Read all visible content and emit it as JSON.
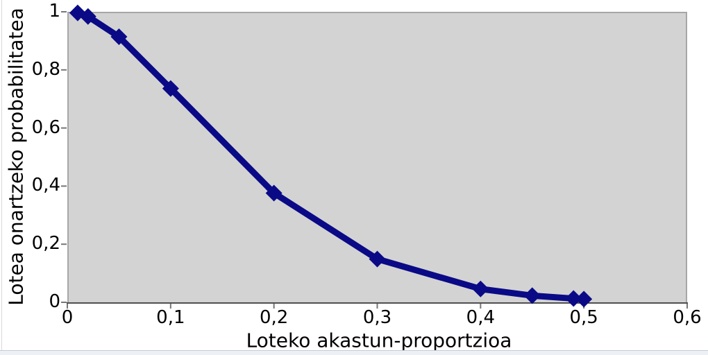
{
  "chart_data": {
    "type": "line",
    "title": "",
    "xlabel": "Loteko akastun-proportzioa",
    "ylabel": "Lotea onartzeko probabilitatea",
    "x": [
      0.01,
      0.02,
      0.05,
      0.1,
      0.2,
      0.3,
      0.4,
      0.45,
      0.49,
      0.5
    ],
    "y": [
      0.996,
      0.984,
      0.914,
      0.736,
      0.376,
      0.149,
      0.046,
      0.023,
      0.013,
      0.011
    ],
    "xlim": [
      0,
      0.6
    ],
    "ylim": [
      0,
      1
    ],
    "x_ticks": {
      "values": [
        0,
        0.1,
        0.2,
        0.3,
        0.4,
        0.5,
        0.6
      ],
      "labels": [
        "0",
        "0,1",
        "0,2",
        "0,3",
        "0,4",
        "0,5",
        "0,6"
      ]
    },
    "y_ticks": {
      "values": [
        0,
        0.2,
        0.4,
        0.6,
        0.8,
        1
      ],
      "labels": [
        "0",
        "0,2",
        "0,4",
        "0,6",
        "0,8",
        "1"
      ]
    },
    "grid": false,
    "legend": "none",
    "marker": "diamond",
    "decimal_separator": ",",
    "colors": {
      "line": "#0a0a87",
      "plot_bg": "#d3d3d3",
      "plot_border": "#a6a6a6",
      "axis_line": "#4f4f4f",
      "tick": "#767676",
      "text": "#000000"
    }
  }
}
